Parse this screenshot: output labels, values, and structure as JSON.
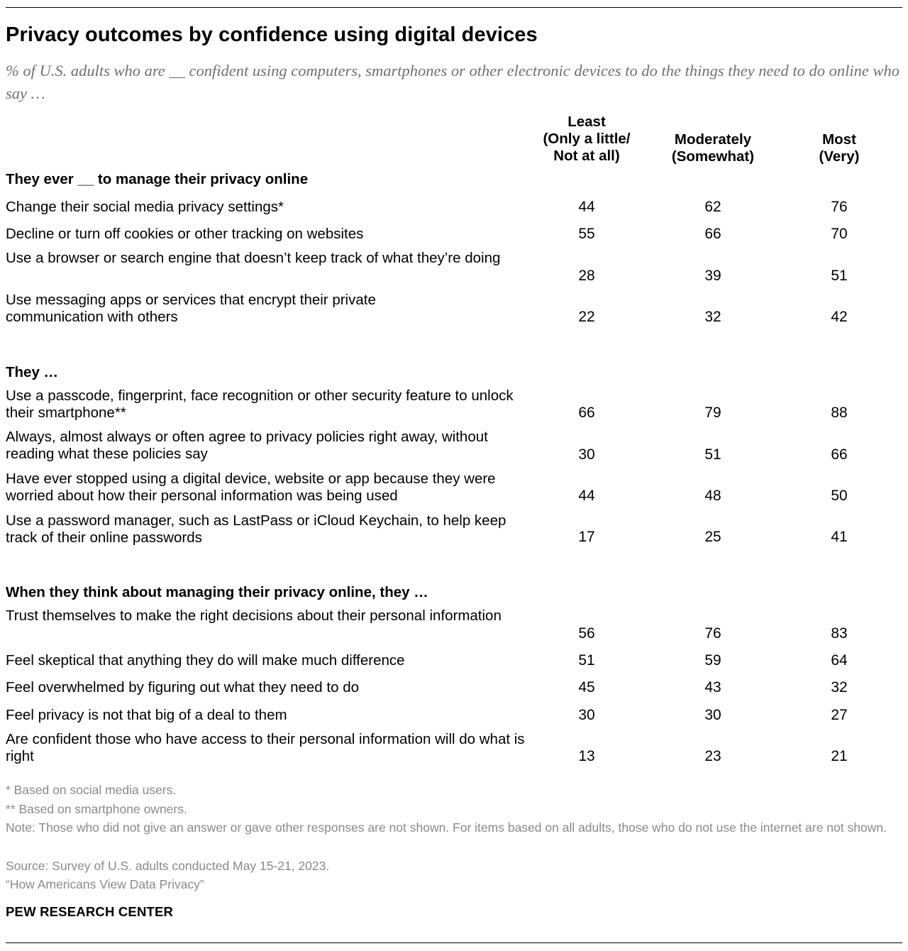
{
  "title": "Privacy outcomes by confidence using digital devices",
  "subtitle": "% of U.S. adults who are __ confident using computers, smartphones or other electronic devices to do the things they need to do online who say …",
  "columns": [
    {
      "lines": [
        "Least",
        "(Only a little/",
        "Not at all)"
      ]
    },
    {
      "lines": [
        "Moderately",
        "(Somewhat)"
      ]
    },
    {
      "lines": [
        "Most",
        "(Very)"
      ]
    }
  ],
  "sections": [
    {
      "heading": "They ever __ to manage their privacy online",
      "rows": [
        {
          "label": "Change their social media privacy settings*",
          "values": [
            "44",
            "62",
            "76"
          ]
        },
        {
          "label": "Decline or turn off cookies or other tracking on websites",
          "values": [
            "55",
            "66",
            "70"
          ]
        },
        {
          "label": "Use a browser or search engine that doesn’t keep track of what they’re doing",
          "values": [
            "28",
            "39",
            "51"
          ]
        },
        {
          "label": "Use messaging apps or services that encrypt their private communication with others",
          "values": [
            "22",
            "32",
            "42"
          ]
        }
      ]
    },
    {
      "heading": "They …",
      "rows": [
        {
          "label": "Use a passcode, fingerprint, face recognition or other security feature to unlock their smartphone**",
          "values": [
            "66",
            "79",
            "88"
          ]
        },
        {
          "label": "Always, almost always or often agree to privacy policies right away, without reading what these policies say",
          "values": [
            "30",
            "51",
            "66"
          ]
        },
        {
          "label": "Have ever stopped using a digital device, website or app because they were worried about how their personal information was being used",
          "values": [
            "44",
            "48",
            "50"
          ]
        },
        {
          "label": "Use a password manager, such as LastPass or iCloud Keychain, to help keep track of their online passwords",
          "values": [
            "17",
            "25",
            "41"
          ]
        }
      ]
    },
    {
      "heading": "When they think about managing their privacy online, they …",
      "rows": [
        {
          "label": "Trust themselves to make the right decisions about their personal information",
          "values": [
            "56",
            "76",
            "83"
          ]
        },
        {
          "label": "Feel skeptical that anything they do will make much difference",
          "values": [
            "51",
            "59",
            "64"
          ]
        },
        {
          "label": "Feel overwhelmed by figuring out what they need to do",
          "values": [
            "45",
            "43",
            "32"
          ]
        },
        {
          "label": "Feel privacy is not that big of a deal to them",
          "values": [
            "30",
            "30",
            "27"
          ]
        },
        {
          "label": "Are confident those who have access to their personal information will do what is right",
          "values": [
            "13",
            "23",
            "21"
          ]
        }
      ]
    }
  ],
  "notes": {
    "n1": "* Based on social media users.",
    "n2": "** Based on smartphone owners.",
    "n3": "Note: Those who did not give an answer or gave other responses are not shown. For items based on all adults, those who do not use the internet are not shown.",
    "n4": "Source: Survey of U.S. adults conducted May 15-21, 2023.",
    "n5": "“How Americans View Data Privacy”"
  },
  "brand": "PEW RESEARCH CENTER",
  "chart_data": {
    "type": "table",
    "title": "Privacy outcomes by confidence using digital devices",
    "columns": [
      "Least (Only a little/Not at all)",
      "Moderately (Somewhat)",
      "Most (Very)"
    ],
    "series": [
      {
        "name": "Change their social media privacy settings*",
        "values": [
          44,
          62,
          76
        ]
      },
      {
        "name": "Decline or turn off cookies or other tracking on websites",
        "values": [
          55,
          66,
          70
        ]
      },
      {
        "name": "Use a browser or search engine that doesn’t keep track of what they’re doing",
        "values": [
          28,
          39,
          51
        ]
      },
      {
        "name": "Use messaging apps or services that encrypt their private communication with others",
        "values": [
          22,
          32,
          42
        ]
      },
      {
        "name": "Use a passcode, fingerprint, face recognition or other security feature to unlock their smartphone**",
        "values": [
          66,
          79,
          88
        ]
      },
      {
        "name": "Always, almost always or often agree to privacy policies right away, without reading what these policies say",
        "values": [
          30,
          51,
          66
        ]
      },
      {
        "name": "Have ever stopped using a digital device, website or app because they were worried about how their personal information was being used",
        "values": [
          44,
          48,
          50
        ]
      },
      {
        "name": "Use a password manager, such as LastPass or iCloud Keychain, to help keep track of their online passwords",
        "values": [
          17,
          25,
          41
        ]
      },
      {
        "name": "Trust themselves to make the right decisions about their personal information",
        "values": [
          56,
          76,
          83
        ]
      },
      {
        "name": "Feel skeptical that anything they do will make much difference",
        "values": [
          51,
          59,
          64
        ]
      },
      {
        "name": "Feel overwhelmed by figuring out what they need to do",
        "values": [
          45,
          43,
          32
        ]
      },
      {
        "name": "Feel privacy is not that big of a deal to them",
        "values": [
          30,
          30,
          27
        ]
      },
      {
        "name": "Are confident those who have access to their personal information will do what is right",
        "values": [
          13,
          23,
          21
        ]
      }
    ]
  }
}
